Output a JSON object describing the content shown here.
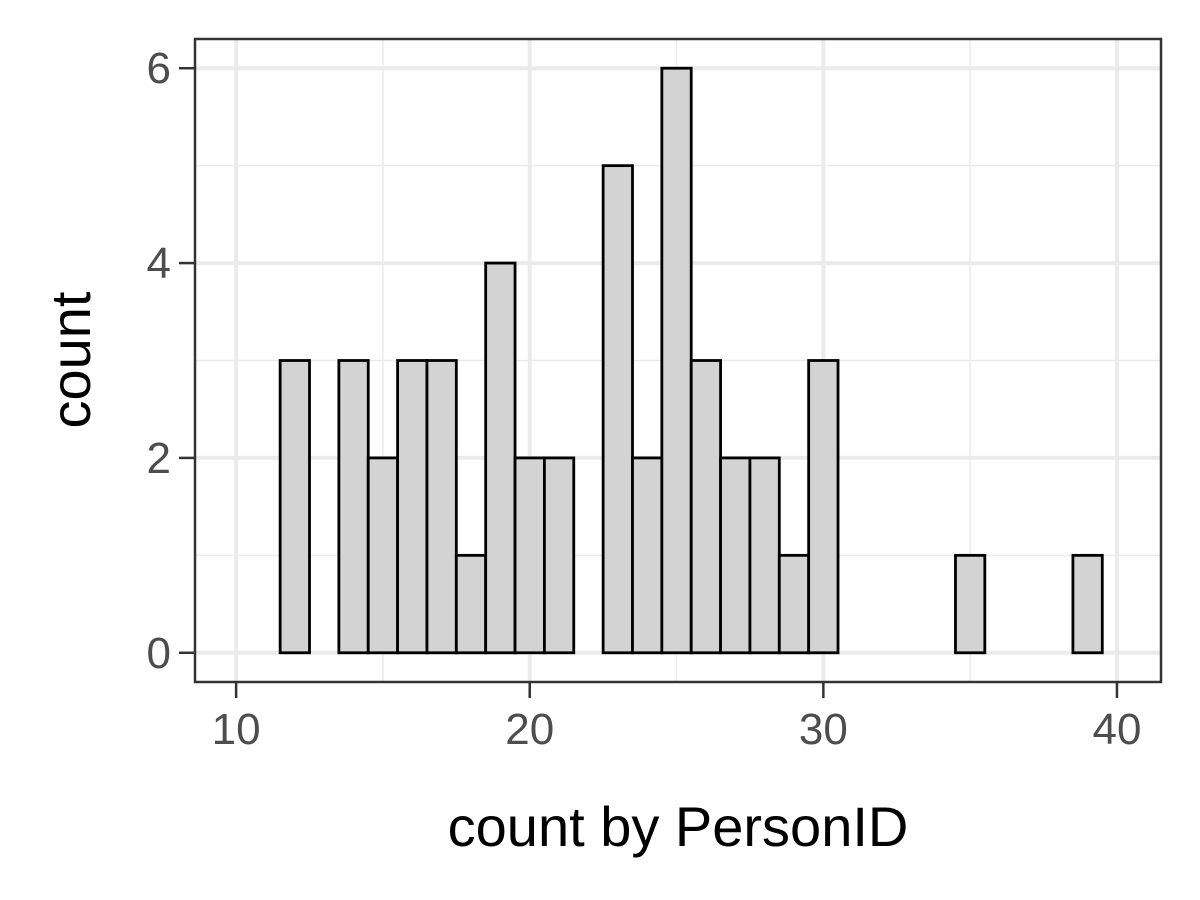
{
  "chart_data": {
    "type": "bar",
    "title": "",
    "xlabel": "count by PersonID",
    "ylabel": "count",
    "xlim": [
      8.6,
      41.5
    ],
    "ylim": [
      -0.3,
      6.3
    ],
    "x_ticks": [
      10,
      20,
      30,
      40
    ],
    "y_ticks": [
      0,
      2,
      4,
      6
    ],
    "y_minor_ticks": [
      1,
      3,
      5
    ],
    "x_minor_ticks": [
      15,
      25,
      35
    ],
    "bin_width": 1,
    "grid": true,
    "bar_fill": "#d3d3d3",
    "bar_stroke": "#000000",
    "bins": [
      {
        "x": 12,
        "count": 3
      },
      {
        "x": 14,
        "count": 3
      },
      {
        "x": 15,
        "count": 2
      },
      {
        "x": 16,
        "count": 3
      },
      {
        "x": 17,
        "count": 3
      },
      {
        "x": 18,
        "count": 1
      },
      {
        "x": 19,
        "count": 4
      },
      {
        "x": 20,
        "count": 2
      },
      {
        "x": 21,
        "count": 2
      },
      {
        "x": 23,
        "count": 5
      },
      {
        "x": 24,
        "count": 2
      },
      {
        "x": 25,
        "count": 6
      },
      {
        "x": 26,
        "count": 3
      },
      {
        "x": 27,
        "count": 2
      },
      {
        "x": 28,
        "count": 2
      },
      {
        "x": 29,
        "count": 1
      },
      {
        "x": 30,
        "count": 3
      },
      {
        "x": 35,
        "count": 1
      },
      {
        "x": 39,
        "count": 1
      }
    ]
  }
}
